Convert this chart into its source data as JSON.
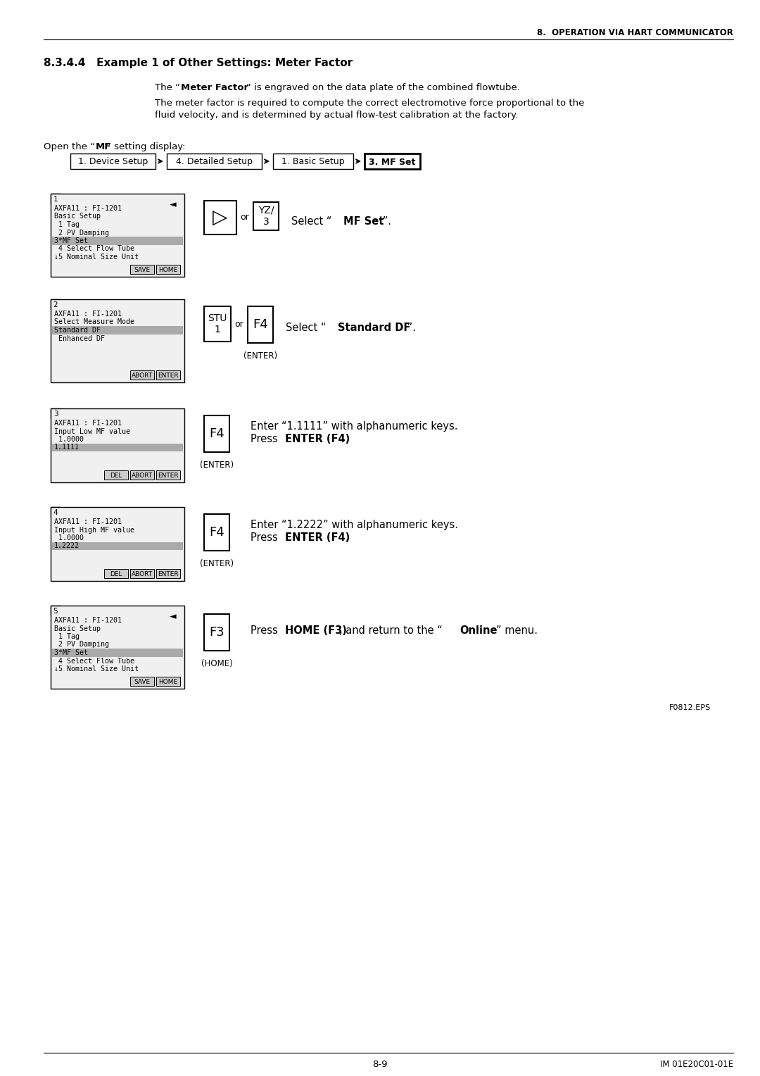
{
  "header_right": "8.  OPERATION VIA HART COMMUNICATOR",
  "section_title_num": "8.3.4.4",
  "section_title_rest": "   Example 1 of Other Settings: Meter Factor",
  "para1_pre": "The “",
  "para1_bold": "Meter Factor",
  "para1_post": "” is engraved on the data plate of the combined flowtube.",
  "para2_line1": "The meter factor is required to compute the correct electromotive force proportional to the",
  "para2_line2": "fluid velocity, and is determined by actual flow-test calibration at the factory.",
  "open_pre": "Open the “",
  "open_bold": "MF",
  "open_post": "” setting display:",
  "nav_boxes": [
    "1. Device Setup",
    "4. Detailed Setup",
    "1. Basic Setup",
    "3. MF Set"
  ],
  "footer_left": "8-9",
  "footer_right": "IM 01E20C01-01E",
  "figure_label": "F0812.EPS",
  "bg_color": "#ffffff",
  "screen_bg": "#f0f0f0",
  "highlight_bg": "#aaaaaa",
  "button_bg": "#cccccc",
  "step1_lines": [
    "AXFA11 : FI-1201",
    "Basic Setup",
    " 1 Tag",
    " 2 PV Damping",
    "3*MF Set",
    " 4 Select Flow Tube",
    "↓5 Nominal Size Unit"
  ],
  "step2_lines": [
    "AXFA11 : FI-1201",
    "Select Measure Mode",
    "Standard DF",
    " Enhanced DF"
  ],
  "step3_lines": [
    "AXFA11 : FI-1201",
    "Input Low MF value",
    " 1.0000",
    "1.1111"
  ],
  "step4_lines": [
    "AXFA11 : FI-1201",
    "Input High MF value",
    " 1.0000",
    "1.2222"
  ],
  "step5_lines": [
    "AXFA11 : FI-1201",
    "Basic Setup",
    " 1 Tag",
    " 2 PV Damping",
    "3*MF Set",
    " 4 Select Flow Tube",
    "↓5 Nominal Size Unit"
  ]
}
